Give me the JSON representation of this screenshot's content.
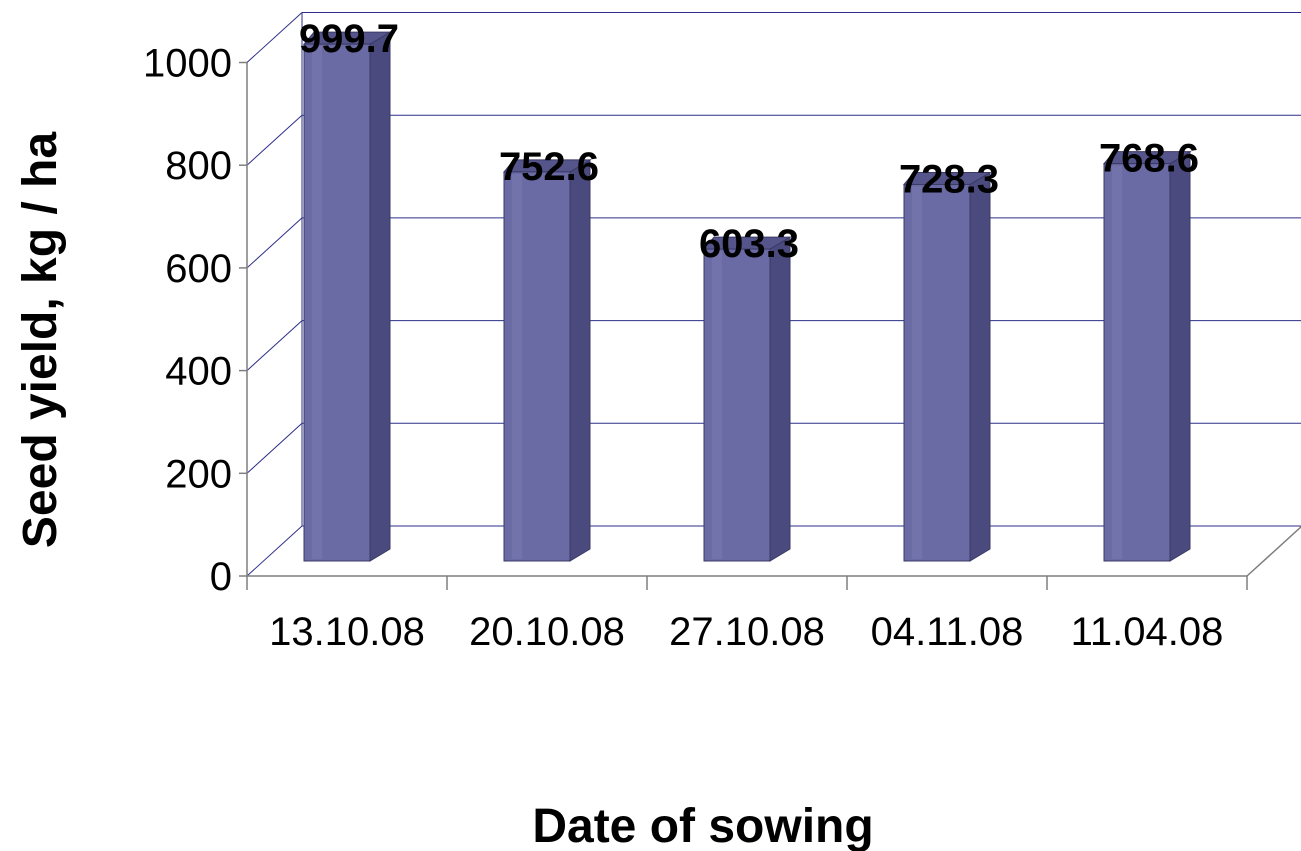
{
  "chart_data": {
    "type": "bar",
    "style": "3d-cylinder",
    "xlabel": "Date of sowing",
    "ylabel": "Seed yield, kg / ha",
    "categories": [
      "13.10.08",
      "20.10.08",
      "27.10.08",
      "04.11.08",
      "11.04.08"
    ],
    "values": [
      999.7,
      752.6,
      603.3,
      728.3,
      768.6
    ],
    "data_labels": [
      "999.7",
      "752.6",
      "603.3",
      "728.3",
      "768.6"
    ],
    "yticks": [
      "0",
      "200",
      "400",
      "600",
      "800",
      "1000"
    ],
    "ylim": [
      0,
      1000
    ],
    "grid": true,
    "legend": "none",
    "colors": {
      "bar_front": "#6a6aa4",
      "bar_side": "#4a4a7e",
      "bar_top": "#55558c",
      "gridline": "#2e2e8a",
      "axis": "#7f7f7f"
    }
  }
}
